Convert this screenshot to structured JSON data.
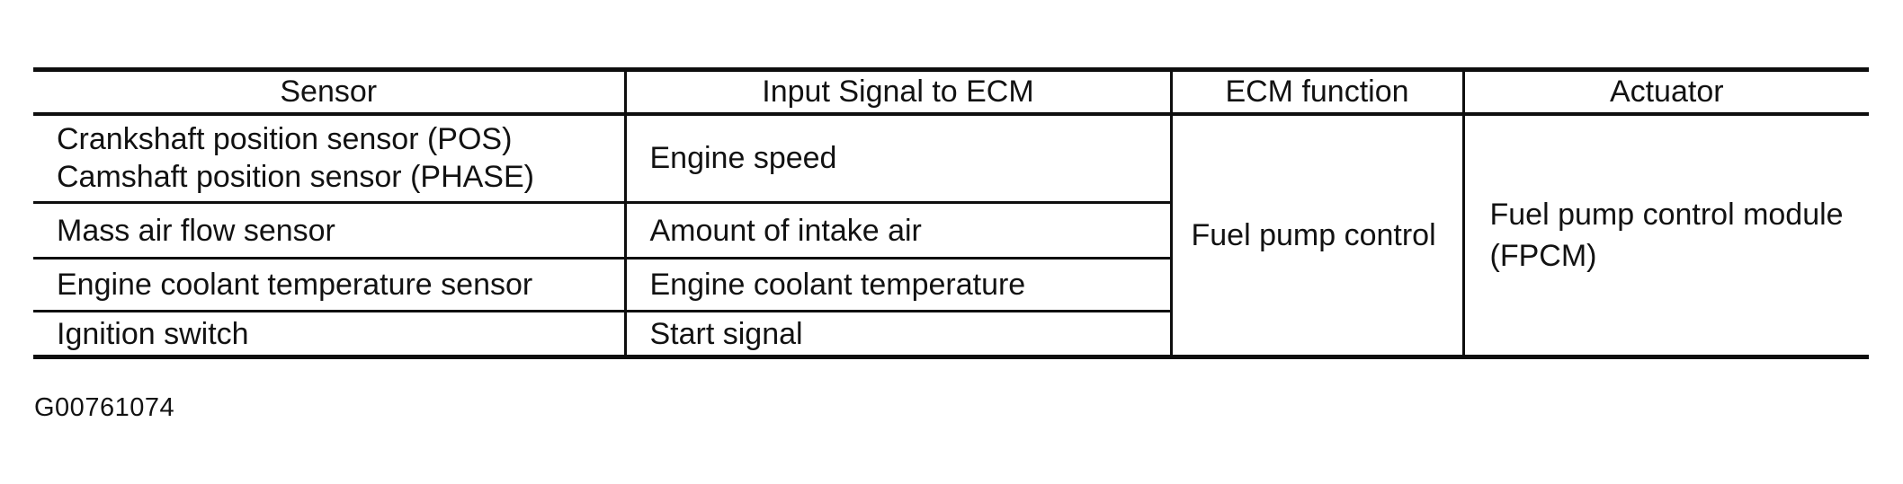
{
  "table": {
    "headers": {
      "sensor": "Sensor",
      "input_signal": "Input Signal to ECM",
      "ecm_function": "ECM function",
      "actuator": "Actuator"
    },
    "rows": [
      {
        "sensor_lines": [
          "Crankshaft position sensor (POS)",
          "Camshaft position sensor (PHASE)"
        ],
        "input_signal": "Engine speed"
      },
      {
        "sensor": "Mass air flow sensor",
        "input_signal": "Amount of intake air"
      },
      {
        "sensor": "Engine coolant temperature sensor",
        "input_signal": "Engine coolant temperature"
      },
      {
        "sensor": "Ignition switch",
        "input_signal": "Start signal"
      }
    ],
    "ecm_function": "Fuel pump control",
    "actuator": "Fuel pump control module (FPCM)"
  },
  "figure_id": "G00761074"
}
